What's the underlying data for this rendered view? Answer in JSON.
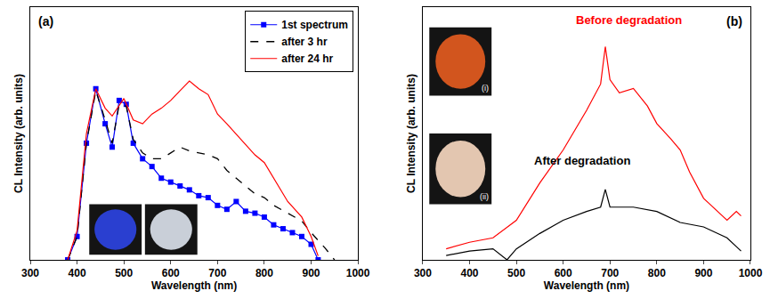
{
  "chart_data": [
    {
      "type": "line",
      "title": "(a)",
      "xlabel": "Wavelength (nm)",
      "ylabel": "CL Intensity (arb. units)",
      "xlim": [
        300,
        1000
      ],
      "xticks": [
        300,
        400,
        500,
        600,
        700,
        800,
        900,
        1000
      ],
      "ylim": [
        0,
        130
      ],
      "tick_labels": "x",
      "legend": "top right",
      "series": [
        {
          "name": "1st spectrum",
          "color": "#0000ff",
          "marker": "square",
          "line_style": "solid",
          "x": [
            380,
            400,
            420,
            440,
            460,
            475,
            490,
            505,
            520,
            540,
            560,
            580,
            600,
            620,
            640,
            660,
            680,
            700,
            720,
            740,
            760,
            780,
            800,
            820,
            840,
            860,
            880,
            900,
            915
          ],
          "values": [
            0,
            12,
            60,
            88,
            70,
            58,
            82,
            80,
            60,
            52,
            48,
            42,
            40,
            38,
            36,
            33,
            32,
            28,
            26,
            30,
            25,
            24,
            22,
            18,
            16,
            14,
            12,
            8,
            0
          ]
        },
        {
          "name": "after 3 hr",
          "color": "#000000",
          "line_style": "dash",
          "x": [
            380,
            400,
            420,
            440,
            460,
            475,
            490,
            505,
            520,
            540,
            560,
            580,
            600,
            620,
            640,
            660,
            680,
            700,
            720,
            740,
            760,
            780,
            800,
            820,
            850,
            880,
            900,
            930,
            950
          ],
          "values": [
            0,
            12,
            60,
            87,
            72,
            60,
            80,
            79,
            62,
            55,
            52,
            52,
            55,
            58,
            56,
            55,
            54,
            52,
            46,
            42,
            38,
            34,
            32,
            28,
            24,
            20,
            14,
            6,
            0
          ]
        },
        {
          "name": "after 24 hr",
          "color": "#ff0000",
          "line_style": "solid",
          "x": [
            380,
            400,
            420,
            440,
            460,
            475,
            500,
            520,
            540,
            560,
            580,
            600,
            620,
            640,
            660,
            680,
            700,
            720,
            750,
            780,
            800,
            820,
            850,
            880,
            900,
            915
          ],
          "values": [
            0,
            15,
            65,
            88,
            78,
            74,
            83,
            72,
            70,
            75,
            78,
            82,
            87,
            92,
            88,
            85,
            75,
            70,
            62,
            54,
            50,
            42,
            30,
            22,
            12,
            2
          ]
        }
      ]
    },
    {
      "type": "line",
      "title": "(b)",
      "xlabel": "Wavelength (nm)",
      "ylabel": "CL Intensity (arb. units)",
      "xlim": [
        300,
        1000
      ],
      "xticks": [
        300,
        400,
        500,
        600,
        700,
        800,
        900,
        1000
      ],
      "ylim": [
        0,
        115
      ],
      "tick_labels": "x",
      "annotations": [
        {
          "text": "Before degradation",
          "x": 740,
          "y": 109,
          "color": "#ff0000"
        },
        {
          "text": "After degradation",
          "x": 640,
          "y": 45,
          "color": "#000000"
        }
      ],
      "inset_labels": [
        "(i)",
        "(ii)"
      ],
      "series": [
        {
          "color": "#ff0000",
          "line_style": "solid",
          "x": [
            350,
            400,
            450,
            500,
            550,
            600,
            650,
            680,
            690,
            700,
            720,
            750,
            780,
            800,
            830,
            850,
            870,
            900,
            930,
            950,
            970,
            980
          ],
          "values": [
            5,
            8,
            10,
            18,
            35,
            50,
            68,
            80,
            97,
            82,
            76,
            78,
            70,
            62,
            55,
            50,
            40,
            28,
            22,
            18,
            22,
            20
          ]
        },
        {
          "color": "#000000",
          "line_style": "solid",
          "x": [
            350,
            400,
            450,
            480,
            500,
            550,
            600,
            650,
            680,
            690,
            700,
            750,
            800,
            850,
            900,
            950,
            980
          ],
          "values": [
            2,
            4,
            5,
            0,
            5,
            12,
            18,
            22,
            24,
            32,
            24,
            24,
            22,
            17,
            15,
            10,
            4
          ]
        }
      ]
    }
  ]
}
